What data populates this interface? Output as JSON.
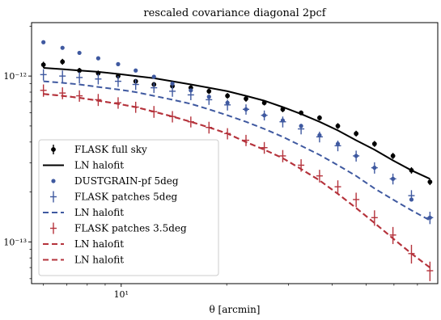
{
  "chart_data": {
    "type": "scatter",
    "title": "rescaled covariance diagonal 2pcf",
    "xlabel": "θ [arcmin]",
    "ylabel": "",
    "xscale": "log",
    "yscale": "log",
    "xlim": [
      5.55,
      80
    ],
    "ylim": [
      5.6e-14,
      2.1e-12
    ],
    "grid": false,
    "legend_position": "lower-left",
    "x_tick_labels": [
      {
        "value": 10,
        "label": "10¹"
      }
    ],
    "y_tick_labels": [
      {
        "value": 1e-12,
        "label": "10⁻¹²"
      },
      {
        "value": 1e-13,
        "label": "10⁻¹³"
      }
    ],
    "x": [
      6.0,
      6.8,
      7.6,
      8.6,
      9.8,
      11.0,
      12.4,
      14.0,
      15.8,
      17.8,
      20.1,
      22.7,
      25.6,
      28.9,
      32.6,
      36.8,
      41.5,
      46.8,
      52.8,
      59.6,
      67.3,
      76.0
    ],
    "series": [
      {
        "name": "FLASK full sky",
        "style": "errorbar-dot",
        "color": "#000000",
        "values": [
          1.17e-12,
          1.22e-12,
          1.08e-12,
          1.04e-12,
          1e-12,
          9.3e-13,
          8.9e-13,
          8.7e-13,
          8.5e-13,
          8.1e-13,
          7.6e-13,
          7.3e-13,
          6.9e-13,
          6.3e-13,
          6e-13,
          5.6e-13,
          5e-13,
          4.5e-13,
          3.9e-13,
          3.3e-13,
          2.7e-13,
          2.3e-13
        ],
        "errors": [
          5e-14,
          5e-14,
          4e-14,
          4e-14,
          4e-14,
          3e-14,
          3e-14,
          3e-14,
          3e-14,
          3e-14,
          3e-14,
          3e-14,
          2.5e-14,
          2.5e-14,
          2e-14,
          2e-14,
          2e-14,
          1.8e-14,
          1.6e-14,
          1.4e-14,
          1.2e-14,
          1e-14
        ]
      },
      {
        "name": "LN halofit",
        "style": "line",
        "color": "#000000",
        "values": [
          1.12e-12,
          1.1e-12,
          1.08e-12,
          1.06e-12,
          1.03e-12,
          1e-12,
          9.7e-13,
          9.3e-13,
          8.9e-13,
          8.5e-13,
          8.1e-13,
          7.6e-13,
          7.1e-13,
          6.5e-13,
          5.9e-13,
          5.3e-13,
          4.7e-13,
          4.1e-13,
          3.6e-13,
          3.1e-13,
          2.7e-13,
          2.4e-13
        ]
      },
      {
        "name": "DUSTGRAIN-pf 5deg",
        "style": "dot",
        "color": "#3f59a0",
        "values": [
          1.6e-12,
          1.48e-12,
          1.38e-12,
          1.28e-12,
          1.18e-12,
          1.08e-12,
          9.9e-13,
          9e-13,
          8.2e-13,
          7.5e-13,
          6.9e-13,
          6.3e-13,
          5.8e-13,
          5.4e-13,
          5e-13,
          4.4e-13,
          3.9e-13,
          3.3e-13,
          2.8e-13,
          2.4e-13,
          1.8e-13,
          1.4e-13
        ]
      },
      {
        "name": "FLASK patches 5deg",
        "style": "errorbar-cross",
        "color": "#3f59a0",
        "values": [
          1.02e-12,
          1e-12,
          9.8e-13,
          9.6e-13,
          9.3e-13,
          8.9e-13,
          8.5e-13,
          8.1e-13,
          7.7e-13,
          7.2e-13,
          6.7e-13,
          6.3e-13,
          5.8e-13,
          5.3e-13,
          4.8e-13,
          4.3e-13,
          3.8e-13,
          3.3e-13,
          2.8e-13,
          2.4e-13,
          1.9e-13,
          1.4e-13
        ],
        "errors": [
          8e-14,
          8e-14,
          7.5e-14,
          7e-14,
          7e-14,
          6.5e-14,
          6e-14,
          6e-14,
          5.5e-14,
          5e-14,
          5e-14,
          4.5e-14,
          4e-14,
          4e-14,
          3.5e-14,
          3.2e-14,
          2.8e-14,
          2.5e-14,
          2.2e-14,
          1.8e-14,
          1.5e-14,
          1.2e-14
        ]
      },
      {
        "name": "LN halofit",
        "style": "dashed",
        "color": "#3f59a0",
        "values": [
          9.3e-13,
          9.1e-13,
          8.9e-13,
          8.6e-13,
          8.3e-13,
          8e-13,
          7.6e-13,
          7.2e-13,
          6.8e-13,
          6.3e-13,
          5.8e-13,
          5.3e-13,
          4.8e-13,
          4.3e-13,
          3.8e-13,
          3.35e-13,
          2.9e-13,
          2.5e-13,
          2.1e-13,
          1.8e-13,
          1.55e-13,
          1.35e-13
        ]
      },
      {
        "name": "FLASK patches 3.5deg",
        "style": "errorbar-cross",
        "color": "#b5333c",
        "values": [
          8.2e-13,
          7.9e-13,
          7.6e-13,
          7.2e-13,
          6.9e-13,
          6.5e-13,
          6.1e-13,
          5.7e-13,
          5.3e-13,
          4.9e-13,
          4.5e-13,
          4.1e-13,
          3.7e-13,
          3.3e-13,
          2.9e-13,
          2.5e-13,
          2.15e-13,
          1.8e-13,
          1.4e-13,
          1.1e-13,
          8.5e-14,
          6.7e-14
        ],
        "errors": [
          7e-14,
          6.5e-14,
          6e-14,
          6e-14,
          5.5e-14,
          5e-14,
          5e-14,
          4.5e-14,
          4e-14,
          4e-14,
          3.5e-14,
          3.2e-14,
          3e-14,
          2.8e-14,
          2.5e-14,
          2.2e-14,
          2e-14,
          1.8e-14,
          1.5e-14,
          1.3e-14,
          1.1e-14,
          9e-15
        ]
      },
      {
        "name": "LN halofit",
        "style": "dashed",
        "color": "#b5333c",
        "values": [
          7.8e-13,
          7.6e-13,
          7.4e-13,
          7.1e-13,
          6.8e-13,
          6.5e-13,
          6.1e-13,
          5.7e-13,
          5.3e-13,
          4.9e-13,
          4.5e-13,
          4e-13,
          3.6e-13,
          3.2e-13,
          2.75e-13,
          2.35e-13,
          1.95e-13,
          1.6e-13,
          1.3e-13,
          1.05e-13,
          8.5e-14,
          7e-14
        ]
      },
      {
        "name": "LN halofit",
        "style": "dashed",
        "color": "#b5333c",
        "values": [
          7.8e-13,
          7.6e-13,
          7.4e-13,
          7.1e-13,
          6.8e-13,
          6.5e-13,
          6.1e-13,
          5.7e-13,
          5.3e-13,
          4.9e-13,
          4.5e-13,
          4e-13,
          3.6e-13,
          3.2e-13,
          2.75e-13,
          2.35e-13,
          1.95e-13,
          1.6e-13,
          1.3e-13,
          1.05e-13,
          8.5e-14,
          7e-14
        ]
      }
    ]
  }
}
